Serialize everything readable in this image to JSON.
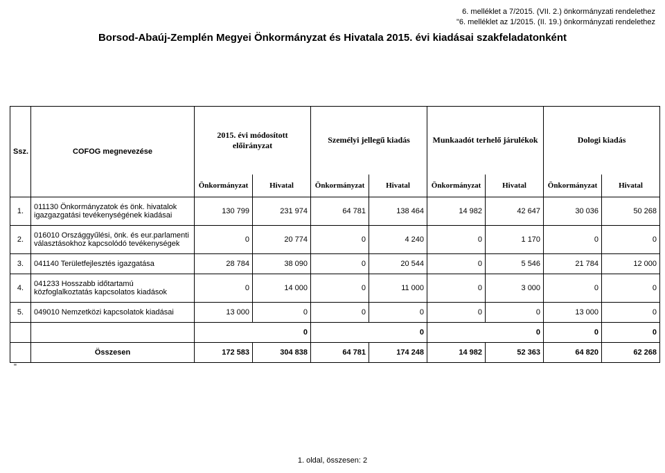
{
  "header": {
    "line1": "6. melléklet a 7/2015. (VII. 2.) önkormányzati rendelethez",
    "line2": "\"6. melléklet az 1/2015. (II. 19.) önkormányzati rendelethez",
    "title": "Borsod-Abaúj-Zemplén Megyei Önkormányzat és Hivatala 2015. évi kiadásai szakfeladatonként"
  },
  "cols": {
    "ssz": "Ssz.",
    "name": "COFOG megnevezése",
    "group0": "2015. évi módosított előirányzat",
    "group1": "Személyi jellegű kiadás",
    "group2": "Munkaadót terhelő járulékok",
    "group3": "Dologi kiadás",
    "subA": "Önkormányzat",
    "subB": "Hivatal"
  },
  "rows": [
    {
      "n": "1.",
      "name": "011130 Önkormányzatok és önk. hivatalok igazgazgatási tevékenységének kiadásai",
      "v": [
        "130 799",
        "231 974",
        "64 781",
        "138 464",
        "14 982",
        "42 647",
        "30 036",
        "50 268"
      ]
    },
    {
      "n": "2.",
      "name": "016010 Országgyűlési, önk. és eur.parlamenti választásokhoz kapcsolódó tevékenységek",
      "v": [
        "0",
        "20 774",
        "0",
        "4 240",
        "0",
        "1 170",
        "0",
        "0"
      ]
    },
    {
      "n": "3.",
      "name": "041140 Területfejlesztés igazgatása",
      "v": [
        "28 784",
        "38 090",
        "0",
        "20 544",
        "0",
        "5 546",
        "21 784",
        "12 000"
      ]
    },
    {
      "n": "4.",
      "name": "041233 Hosszabb időtartamú közfoglalkoztatás kapcsolatos kiadások",
      "v": [
        "0",
        "14 000",
        "0",
        "11 000",
        "0",
        "3 000",
        "0",
        "0"
      ]
    },
    {
      "n": "5.",
      "name": "049010 Nemzetközi kapcsolatok kiadásai",
      "v": [
        "13 000",
        "0",
        "0",
        "0",
        "0",
        "0",
        "13 000",
        "0"
      ]
    }
  ],
  "blank": {
    "v": [
      "0",
      "0",
      "0",
      "0",
      "0"
    ]
  },
  "total": {
    "label": "Összesen",
    "v": [
      "172 583",
      "304 838",
      "64 781",
      "174 248",
      "14 982",
      "52 363",
      "64 820",
      "62 268"
    ]
  },
  "trailing_quote": "\"",
  "footer": "1. oldal, összesen: 2"
}
